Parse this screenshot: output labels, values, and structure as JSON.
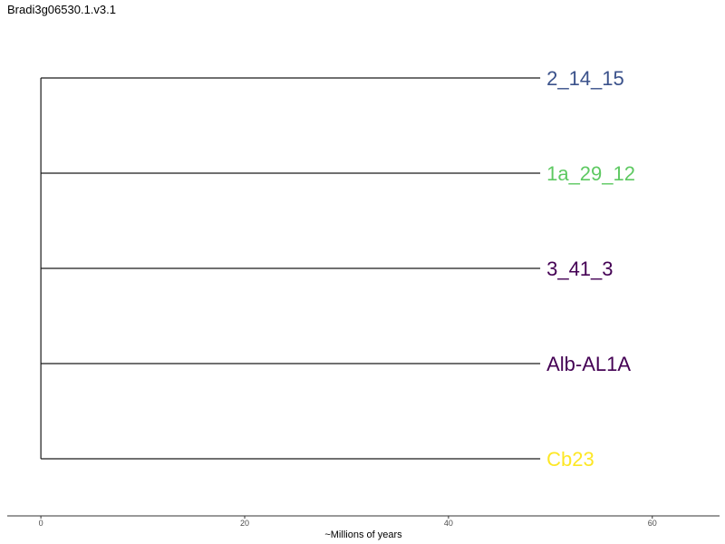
{
  "title": "Bradi3g06530.1.v3.1",
  "tree": {
    "tips": [
      {
        "label": "2_14_15",
        "color": "#3b528b",
        "branch_length": 49
      },
      {
        "label": "1a_29_12",
        "color": "#5ec962",
        "branch_length": 49
      },
      {
        "label": "3_41_3",
        "color": "#440154",
        "branch_length": 49
      },
      {
        "label": "Alb-AL1A",
        "color": "#440154",
        "branch_length": 49
      },
      {
        "label": "Cb23",
        "color": "#fde725",
        "branch_length": 49
      }
    ],
    "root_x": 0
  },
  "axis": {
    "title": "~Millions of years",
    "ticks": [
      0,
      20,
      40,
      60
    ],
    "range": [
      -3.3,
      66.6
    ]
  }
}
